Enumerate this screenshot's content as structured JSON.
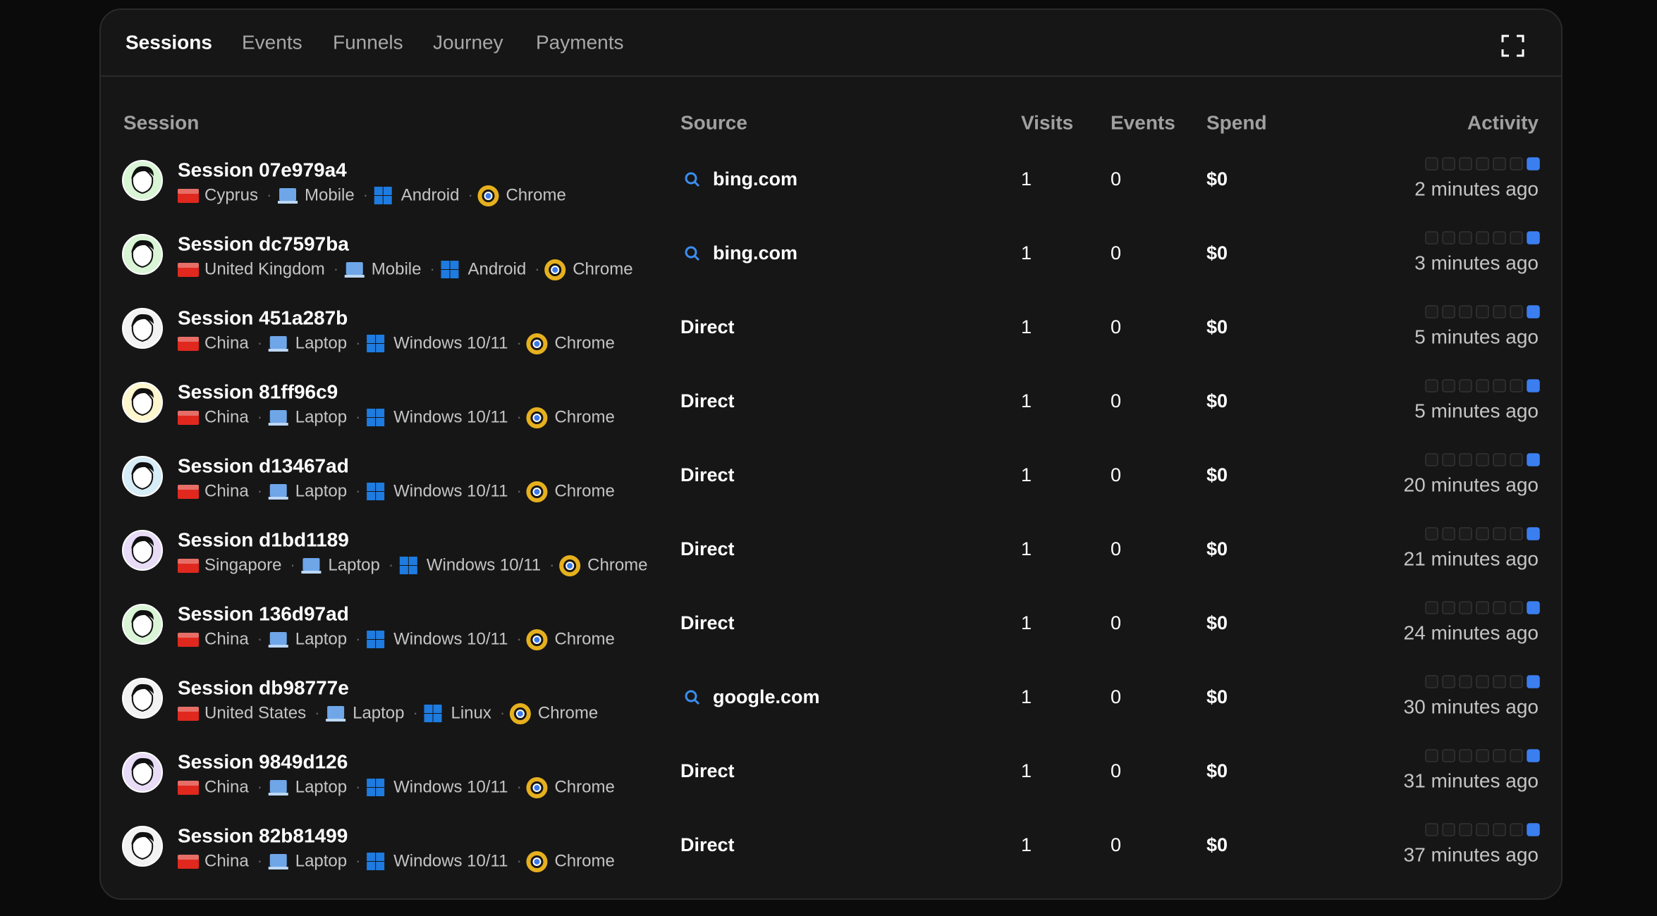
{
  "tabs": [
    "Sessions",
    "Events",
    "Funnels",
    "Journey",
    "Payments"
  ],
  "table": {
    "columns": [
      "Session",
      "Source",
      "Visits",
      "Events",
      "Spend",
      "Activity"
    ],
    "rows": [
      {
        "session": "Session 07e979a4",
        "country": "Cyprus",
        "device": "Mobile",
        "os": "Android",
        "browser": "Chrome",
        "source": "bing.com",
        "visits": 1,
        "events": 0,
        "spend": "$0",
        "activity": "2 minutes ago"
      },
      {
        "session": "Session dc7597ba",
        "country": "United Kingdom",
        "device": "Mobile",
        "os": "Android",
        "browser": "Chrome",
        "source": "bing.com",
        "visits": 1,
        "events": 0,
        "spend": "$0",
        "activity": "3 minutes ago"
      },
      {
        "session": "Session 451a287b",
        "country": "China",
        "device": "Laptop",
        "os": "Windows 10/11",
        "browser": "Chrome",
        "source": "Direct",
        "visits": 1,
        "events": 0,
        "spend": "$0",
        "activity": "5 minutes ago"
      },
      {
        "session": "Session 81ff96c9",
        "country": "China",
        "device": "Laptop",
        "os": "Windows 10/11",
        "browser": "Chrome",
        "source": "Direct",
        "visits": 1,
        "events": 0,
        "spend": "$0",
        "activity": "5 minutes ago"
      },
      {
        "session": "Session d13467ad",
        "country": "China",
        "device": "Laptop",
        "os": "Windows 10/11",
        "browser": "Chrome",
        "source": "Direct",
        "visits": 1,
        "events": 0,
        "spend": "$0",
        "activity": "20 minutes ago"
      },
      {
        "session": "Session d1bd1189",
        "country": "Singapore",
        "device": "Laptop",
        "os": "Windows 10/11",
        "browser": "Chrome",
        "source": "Direct",
        "visits": 1,
        "events": 0,
        "spend": "$0",
        "activity": "21 minutes ago"
      },
      {
        "session": "Session 136d97ad",
        "country": "China",
        "device": "Laptop",
        "os": "Windows 10/11",
        "browser": "Chrome",
        "source": "Direct",
        "visits": 1,
        "events": 0,
        "spend": "$0",
        "activity": "24 minutes ago"
      },
      {
        "session": "Session db98777e",
        "country": "United States",
        "device": "Laptop",
        "os": "Linux",
        "browser": "Chrome",
        "source": "google.com",
        "visits": 1,
        "events": 0,
        "spend": "$0",
        "activity": "30 minutes ago"
      },
      {
        "session": "Session 9849d126",
        "country": "China",
        "device": "Laptop",
        "os": "Windows 10/11",
        "browser": "Chrome",
        "source": "Direct",
        "visits": 1,
        "events": 0,
        "spend": "$0",
        "activity": "31 minutes ago"
      },
      {
        "session": "Session 82b81499",
        "country": "China",
        "device": "Laptop",
        "os": "Windows 10/11",
        "browser": "Chrome",
        "source": "Direct",
        "visits": 1,
        "events": 0,
        "spend": "$0",
        "activity": "37 minutes ago"
      }
    ]
  }
}
